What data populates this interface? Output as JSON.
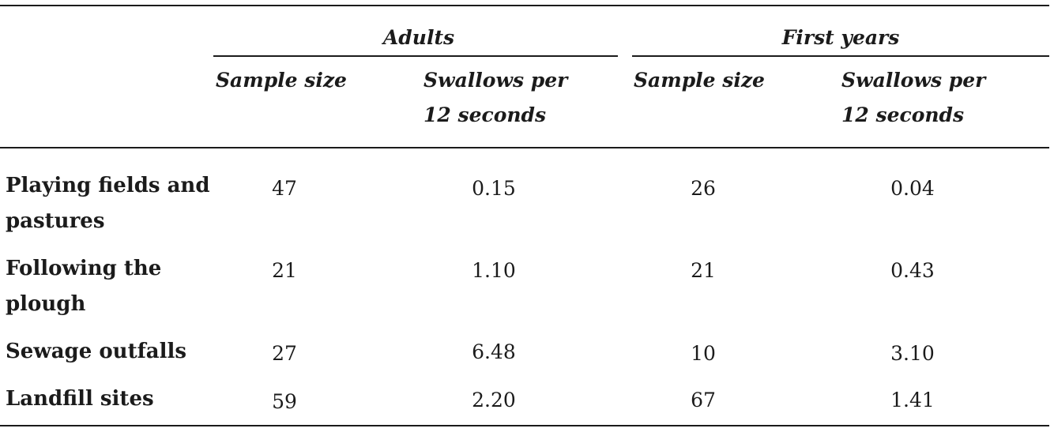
{
  "table": {
    "groups": [
      "Adults",
      "First years"
    ],
    "columns": [
      [
        "Sample size"
      ],
      [
        "Swallows per",
        "12 seconds"
      ],
      [
        "Sample size"
      ],
      [
        "Swallows per",
        "12 seconds"
      ]
    ],
    "rows": [
      {
        "label": [
          "Playing fields and",
          "pastures"
        ],
        "values": [
          "47",
          "0.15",
          "26",
          "0.04"
        ]
      },
      {
        "label": [
          "Following the",
          "plough"
        ],
        "values": [
          "21",
          "1.10",
          "21",
          "0.43"
        ]
      },
      {
        "label": [
          "Sewage outfalls"
        ],
        "values": [
          "27",
          "6.48",
          "10",
          "3.10"
        ]
      },
      {
        "label": [
          "Landfill sites"
        ],
        "values": [
          "59",
          "2.20",
          "67",
          "1.41"
        ]
      }
    ]
  }
}
